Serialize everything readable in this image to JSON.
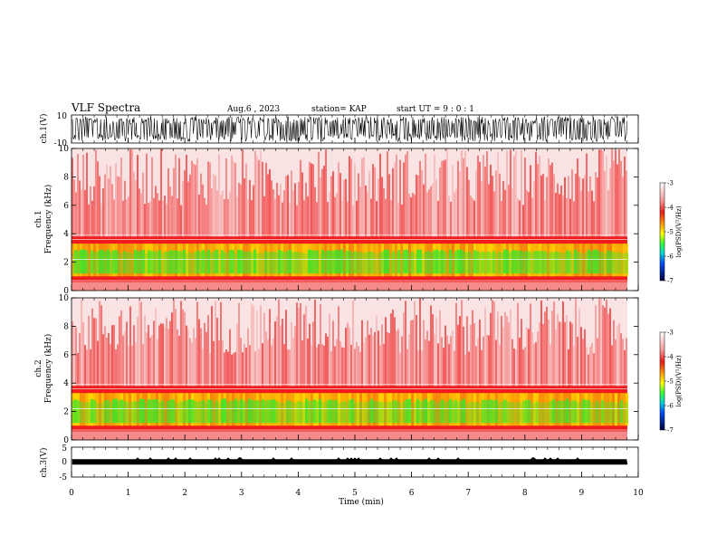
{
  "header": {
    "title": "VLF Spectra",
    "date": "Aug.6  , 2023",
    "station": "station= KAP",
    "start": "start  UT  =   9  : 0   : 1"
  },
  "chart_data": [
    {
      "type": "line",
      "panel": "ch1-waveform",
      "ylabel": "ch.1(V)",
      "ylim": [
        -10,
        10
      ],
      "yticks": [
        "10",
        "-10"
      ],
      "xlim": [
        0,
        10
      ]
    },
    {
      "type": "heatmap",
      "panel": "ch1-spectrogram",
      "ylabel": "ch.1\nFrequency  (kHz)",
      "ylim": [
        0,
        10
      ],
      "yticks": [
        "0",
        "2",
        "4",
        "6",
        "8",
        "10"
      ],
      "xlim": [
        0,
        10
      ],
      "colorbar": {
        "label": "log(PSD)(V²/Hz)",
        "range": [
          -7,
          -3
        ],
        "ticks": [
          "-3",
          "-4",
          "-5",
          "-6",
          "-7"
        ]
      }
    },
    {
      "type": "heatmap",
      "panel": "ch2-spectrogram",
      "ylabel": "ch.2\nFrequency  (kHz)",
      "ylim": [
        0,
        10
      ],
      "yticks": [
        "0",
        "2",
        "4",
        "6",
        "8",
        "10"
      ],
      "xlim": [
        0,
        10
      ],
      "colorbar": {
        "label": "log(PSD)(V²/Hz)",
        "range": [
          -7,
          -3
        ],
        "ticks": [
          "-3",
          "-4",
          "-5",
          "-6",
          "-7"
        ]
      }
    },
    {
      "type": "line",
      "panel": "ch3-waveform",
      "ylabel": "ch.3(V)",
      "ylim": [
        -5,
        5
      ],
      "yticks": [
        "5",
        "0",
        "-5"
      ],
      "xlim": [
        0,
        10
      ],
      "xlabel": "Time  (min)",
      "xticks": [
        "0",
        "1",
        "2",
        "3",
        "4",
        "5",
        "6",
        "7",
        "8",
        "9",
        "10"
      ]
    }
  ],
  "colors": {
    "waveform": "#000000",
    "spec_high": "#ee1c1c",
    "spec_mid": "#ffd400",
    "spec_low": "#2ee82e",
    "background": "#ffffff"
  }
}
